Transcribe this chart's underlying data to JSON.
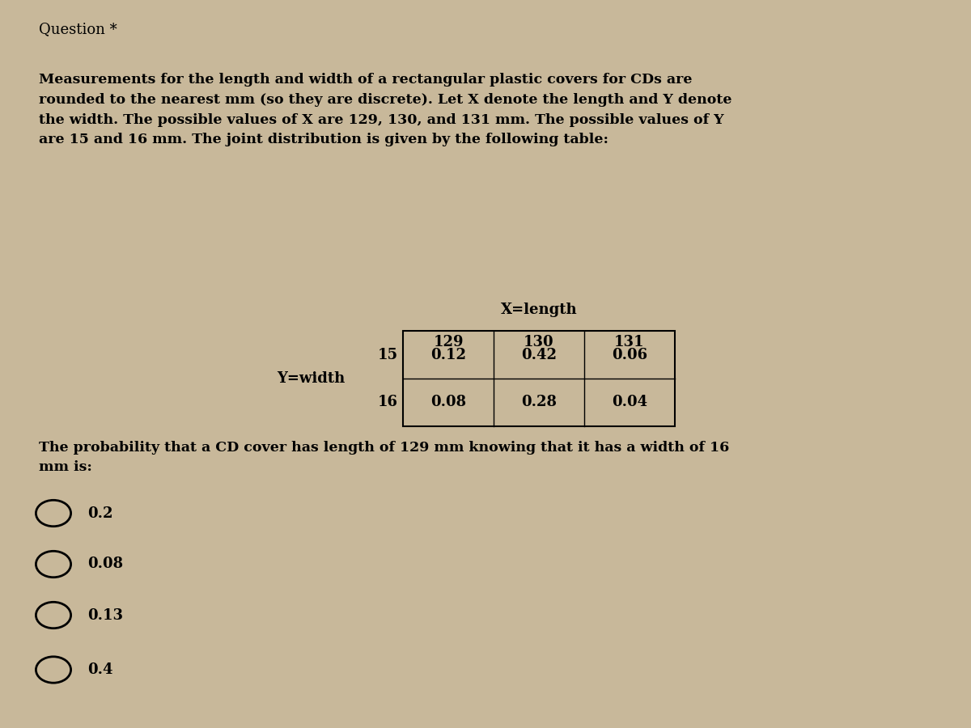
{
  "title": "Question *",
  "background_color": "#c8b89a",
  "text_color": "#000000",
  "paragraph": "Measurements for the length and width of a rectangular plastic covers for CDs are\nrounded to the nearest mm (so they are discrete). Let X denote the length and Y denote\nthe width. The possible values of X are 129, 130, and 131 mm. The possible values of Y\nare 15 and 16 mm. The joint distribution is given by the following table:",
  "table_header_label": "X=length",
  "table_col_labels": [
    "129",
    "130",
    "131"
  ],
  "table_row_label": "Y=width",
  "table_row_values": [
    "15",
    "16"
  ],
  "table_data": [
    [
      "0.12",
      "0.42",
      "0.06"
    ],
    [
      "0.08",
      "0.28",
      "0.04"
    ]
  ],
  "question_text": "The probability that a CD cover has length of 129 mm knowing that it has a width of 16\nmm is:",
  "options": [
    "0.2",
    "0.08",
    "0.13",
    "0.4"
  ]
}
